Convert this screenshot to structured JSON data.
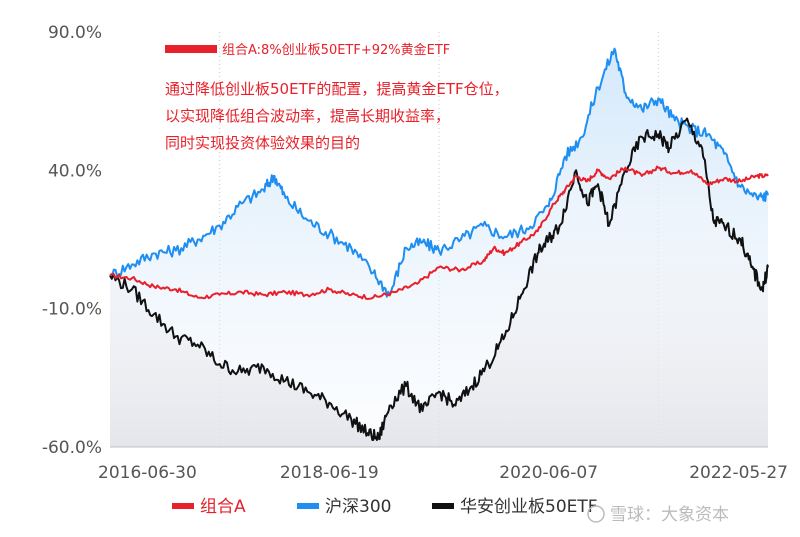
{
  "chart_data": {
    "type": "line",
    "title": "",
    "legend_title": "组合A:8%创业板50ETF+92%黄金ETF",
    "annotation": [
      "通过降低创业板50ETF的配置，提高黄金ETF仓位，",
      "以实现降低组合波动率，提高长期收益率，",
      "同时实现投资体验效果的目的"
    ],
    "y_ticks": [
      "90.0%",
      "40.0%",
      "-10.0%",
      "-60.0%"
    ],
    "ylim": [
      -60,
      90
    ],
    "x_ticks": [
      "2016-06-30",
      "2018-06-19",
      "2020-06-07",
      "2022-05-27"
    ],
    "grid": "vertical dotted",
    "legend_position": "bottom",
    "colors": {
      "combo": "#e8202a",
      "hs300": "#1f8ef1",
      "gem": "#111111"
    },
    "watermark": "雪球：大象资本",
    "series": [
      {
        "name": "组合A",
        "key": "combo",
        "values": [
          [
            2016.5,
            2
          ],
          [
            2016.7,
            1
          ],
          [
            2016.9,
            -2
          ],
          [
            2017.1,
            -3
          ],
          [
            2017.3,
            -6
          ],
          [
            2017.5,
            -5
          ],
          [
            2017.7,
            -4
          ],
          [
            2017.9,
            -5
          ],
          [
            2018.1,
            -4
          ],
          [
            2018.3,
            -5
          ],
          [
            2018.5,
            -3
          ],
          [
            2018.7,
            -5
          ],
          [
            2018.9,
            -6
          ],
          [
            2019.1,
            -4
          ],
          [
            2019.3,
            -1
          ],
          [
            2019.5,
            5
          ],
          [
            2019.7,
            4
          ],
          [
            2019.9,
            7
          ],
          [
            2020.0,
            12
          ],
          [
            2020.1,
            10
          ],
          [
            2020.25,
            14
          ],
          [
            2020.4,
            18
          ],
          [
            2020.55,
            28
          ],
          [
            2020.65,
            33
          ],
          [
            2020.75,
            38
          ],
          [
            2020.85,
            36
          ],
          [
            2020.95,
            40
          ],
          [
            2021.05,
            37
          ],
          [
            2021.2,
            41
          ],
          [
            2021.35,
            38
          ],
          [
            2021.5,
            41
          ],
          [
            2021.65,
            39
          ],
          [
            2021.8,
            40
          ],
          [
            2021.95,
            35
          ],
          [
            2022.1,
            37
          ],
          [
            2022.25,
            36
          ],
          [
            2022.4,
            38
          ],
          [
            2022.5,
            38
          ]
        ]
      },
      {
        "name": "沪深300",
        "key": "hs300",
        "values": [
          [
            2016.5,
            2
          ],
          [
            2016.7,
            6
          ],
          [
            2016.9,
            10
          ],
          [
            2017.1,
            11
          ],
          [
            2017.3,
            15
          ],
          [
            2017.5,
            20
          ],
          [
            2017.7,
            28
          ],
          [
            2017.9,
            33
          ],
          [
            2018.0,
            38
          ],
          [
            2018.1,
            30
          ],
          [
            2018.3,
            22
          ],
          [
            2018.5,
            17
          ],
          [
            2018.7,
            12
          ],
          [
            2018.9,
            3
          ],
          [
            2019.05,
            -5
          ],
          [
            2019.2,
            12
          ],
          [
            2019.35,
            14
          ],
          [
            2019.5,
            11
          ],
          [
            2019.7,
            15
          ],
          [
            2019.9,
            20
          ],
          [
            2020.1,
            16
          ],
          [
            2020.3,
            19
          ],
          [
            2020.5,
            27
          ],
          [
            2020.65,
            45
          ],
          [
            2020.8,
            52
          ],
          [
            2020.95,
            70
          ],
          [
            2021.1,
            84
          ],
          [
            2021.2,
            68
          ],
          [
            2021.35,
            62
          ],
          [
            2021.5,
            66
          ],
          [
            2021.65,
            58
          ],
          [
            2021.8,
            55
          ],
          [
            2021.95,
            53
          ],
          [
            2022.1,
            46
          ],
          [
            2022.25,
            34
          ],
          [
            2022.4,
            30
          ],
          [
            2022.5,
            31
          ]
        ]
      },
      {
        "name": "华安创业板50ETF",
        "key": "gem",
        "values": [
          [
            2016.5,
            2
          ],
          [
            2016.7,
            -3
          ],
          [
            2016.9,
            -12
          ],
          [
            2017.1,
            -20
          ],
          [
            2017.3,
            -23
          ],
          [
            2017.5,
            -30
          ],
          [
            2017.7,
            -33
          ],
          [
            2017.9,
            -31
          ],
          [
            2018.1,
            -36
          ],
          [
            2018.3,
            -40
          ],
          [
            2018.5,
            -44
          ],
          [
            2018.7,
            -50
          ],
          [
            2018.85,
            -55
          ],
          [
            2018.95,
            -57
          ],
          [
            2019.05,
            -45
          ],
          [
            2019.2,
            -38
          ],
          [
            2019.35,
            -47
          ],
          [
            2019.5,
            -40
          ],
          [
            2019.65,
            -45
          ],
          [
            2019.8,
            -38
          ],
          [
            2019.95,
            -30
          ],
          [
            2020.1,
            -20
          ],
          [
            2020.25,
            -5
          ],
          [
            2020.4,
            10
          ],
          [
            2020.5,
            15
          ],
          [
            2020.6,
            20
          ],
          [
            2020.75,
            40
          ],
          [
            2020.85,
            28
          ],
          [
            2020.95,
            35
          ],
          [
            2021.05,
            20
          ],
          [
            2021.2,
            40
          ],
          [
            2021.35,
            52
          ],
          [
            2021.5,
            53
          ],
          [
            2021.6,
            48
          ],
          [
            2021.75,
            58
          ],
          [
            2021.9,
            48
          ],
          [
            2022.0,
            22
          ],
          [
            2022.1,
            20
          ],
          [
            2022.25,
            15
          ],
          [
            2022.35,
            5
          ],
          [
            2022.45,
            -3
          ],
          [
            2022.5,
            5
          ]
        ]
      }
    ]
  },
  "legend": {
    "combo": "组合A",
    "hs300": "沪深300",
    "gem": "华安创业板50ETF"
  }
}
